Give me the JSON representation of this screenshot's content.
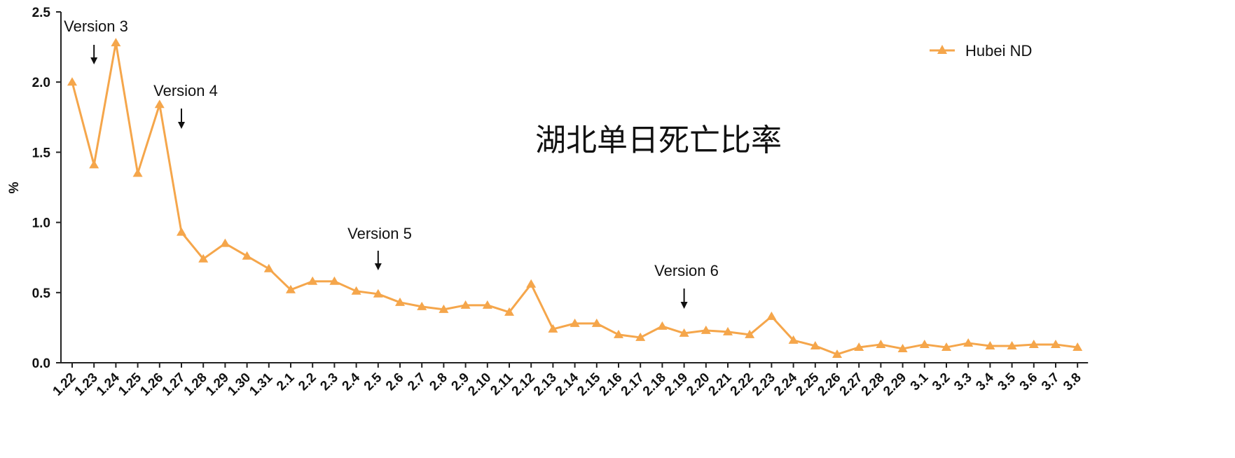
{
  "chart_data": {
    "type": "line",
    "title": "湖北单日死亡比率",
    "xlabel": "",
    "ylabel": "%",
    "ylim": [
      0,
      2.5
    ],
    "yticks": [
      "0.0",
      "0.5",
      "1.0",
      "1.5",
      "2.0",
      "2.5"
    ],
    "grid": false,
    "legend_position": "top-right",
    "colors": {
      "series": "#F5A64B",
      "axis": "#222222",
      "text": "#111111"
    },
    "categories": [
      "1.22",
      "1.23",
      "1.24",
      "1.25",
      "1.26",
      "1.27",
      "1.28",
      "1.29",
      "1.30",
      "1.31",
      "2.1",
      "2.2",
      "2.3",
      "2.4",
      "2.5",
      "2.6",
      "2.7",
      "2.8",
      "2.9",
      "2.10",
      "2.11",
      "2.12",
      "2.13",
      "2.14",
      "2.15",
      "2.16",
      "2.17",
      "2.18",
      "2.19",
      "2.20",
      "2.21",
      "2.22",
      "2.23",
      "2.24",
      "2.25",
      "2.26",
      "2.27",
      "2.28",
      "2.29",
      "3.1",
      "3.2",
      "3.3",
      "3.4",
      "3.5",
      "3.6",
      "3.7",
      "3.8"
    ],
    "series": [
      {
        "name": "Hubei ND",
        "marker": "triangle",
        "values": [
          2.0,
          1.41,
          2.28,
          1.35,
          1.84,
          0.93,
          0.74,
          0.85,
          0.76,
          0.67,
          0.52,
          0.58,
          0.58,
          0.51,
          0.49,
          0.43,
          0.4,
          0.38,
          0.41,
          0.41,
          0.36,
          0.56,
          0.24,
          0.28,
          0.28,
          0.2,
          0.18,
          0.26,
          0.21,
          0.23,
          0.22,
          0.2,
          0.33,
          0.16,
          0.12,
          0.06,
          0.11,
          0.13,
          0.1,
          0.13,
          0.11,
          0.14,
          0.12,
          0.12,
          0.13,
          0.13,
          0.11
        ]
      }
    ],
    "annotations": [
      {
        "text": "Version 3",
        "x": "1.23"
      },
      {
        "text": "Version 4",
        "x": "1.27"
      },
      {
        "text": "Version 5",
        "x": "2.5"
      },
      {
        "text": "Version 6",
        "x": "2.19"
      }
    ]
  }
}
